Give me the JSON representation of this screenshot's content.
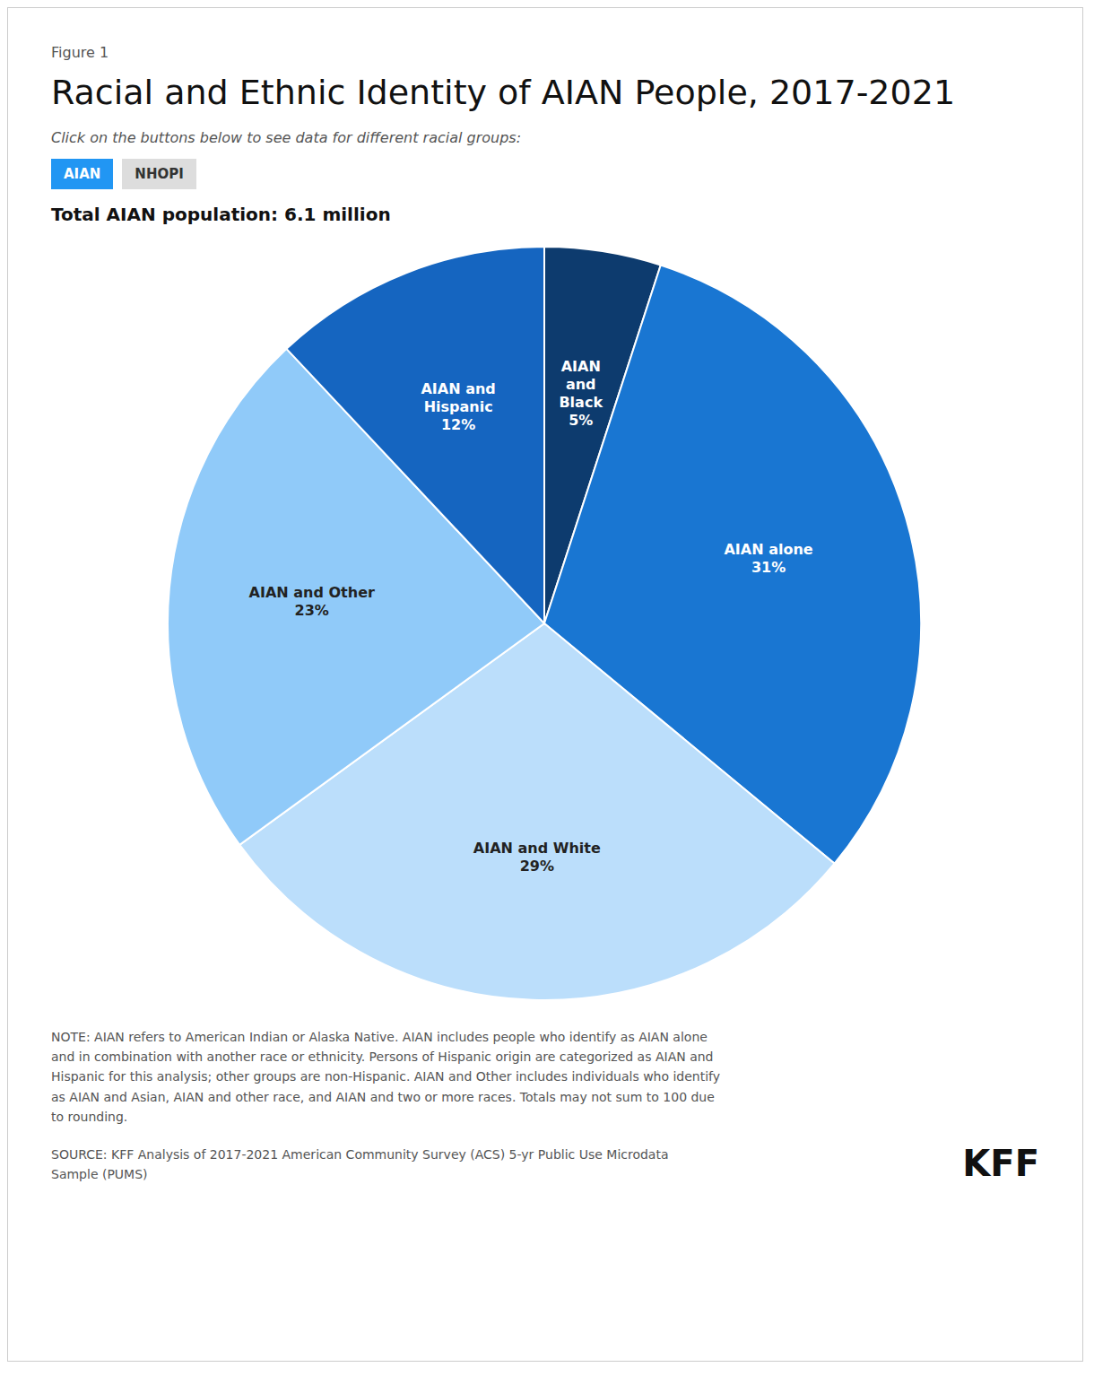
{
  "chart_data": {
    "type": "pie",
    "title": "Racial and Ethnic Identity of AIAN People, 2017-2021",
    "subtitle": "Click on the buttons below to see data for different racial groups:",
    "categories": [
      "AIAN and Black",
      "AIAN alone",
      "AIAN and White",
      "AIAN and Other",
      "AIAN and Hispanic"
    ],
    "values": [
      5,
      31,
      29,
      23,
      12
    ],
    "value_labels": [
      "5%",
      "31%",
      "29%",
      "23%",
      "12%"
    ],
    "colors": [
      "#0D3B6E",
      "#1976D2",
      "#BBDEFB",
      "#90CAF9",
      "#1565C0"
    ],
    "data_labels": true,
    "annotations": [
      "Figure 1",
      "AIAN",
      "NHOPI",
      "Total AIAN population: 6.1 million",
      "NOTE: AIAN refers to American Indian or Alaska Native. AIAN includes people who identify as AIAN alone\nand in combination with another race or ethnicity. Persons of Hispanic origin are categorized as AIAN and\nHispanic for this analysis; other groups are non-Hispanic. AIAN and Other includes individuals who identify\nas AIAN and Asian, AIAN and other race, and AIAN and two or more races. Totals may not sum to 100 due\nto rounding.",
      "SOURCE: KFF Analysis of 2017-2021 American Community Survey (ACS) 5-yr Public Use Microdata\nSample (PUMS)",
      "KFF"
    ]
  }
}
